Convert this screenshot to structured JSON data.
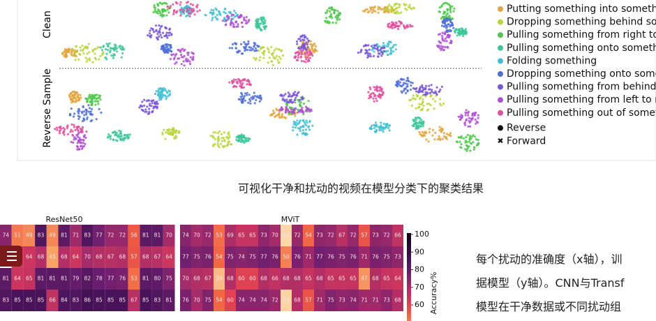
{
  "figure_top": {
    "row_labels": [
      "Clean",
      "Reverse Sample"
    ],
    "legend": [
      {
        "label": "Putting something into somethi",
        "color": "#e5a53a"
      },
      {
        "label": "Dropping something behind sor",
        "color": "#b9d63e"
      },
      {
        "label": "Pulling something from right to",
        "color": "#4cc84a"
      },
      {
        "label": "Pulling something onto somethi",
        "color": "#3cc79a"
      },
      {
        "label": "Folding something",
        "color": "#41bfd2"
      },
      {
        "label": "Dropping something onto some",
        "color": "#4f6fd8"
      },
      {
        "label": "Pulling something from behind",
        "color": "#7a55d8"
      },
      {
        "label": "Pulling something from left to ri",
        "color": "#b04fd6"
      },
      {
        "label": "Pulling something out of someth",
        "color": "#e0509e"
      }
    ],
    "marker_legend": [
      "Reverse",
      "Forward"
    ]
  },
  "caption": "可视化干净和扰动的视频在模型分类下的聚类结果",
  "heatmap": {
    "panels": [
      {
        "title": "ResNet50",
        "rows": [
          [
            74,
            51,
            49,
            83,
            49,
            81,
            71,
            83,
            77,
            72,
            72,
            56,
            81,
            81,
            70
          ],
          [
            null,
            63,
            64,
            68,
            45,
            68,
            64,
            70,
            68,
            67,
            68,
            57,
            68,
            67,
            64
          ],
          [
            81,
            64,
            65,
            81,
            81,
            81,
            79,
            82,
            78,
            77,
            76,
            53,
            81,
            80,
            75
          ],
          [
            83,
            85,
            85,
            85,
            66,
            84,
            83,
            86,
            85,
            85,
            85,
            67,
            85,
            83,
            81
          ]
        ]
      },
      {
        "title": "MViT",
        "rows": [
          [
            74,
            70,
            72,
            53,
            69,
            65,
            65,
            73,
            70,
            32,
            72,
            54,
            73,
            72,
            67,
            72,
            57,
            73,
            72,
            66
          ],
          [
            77,
            75,
            76,
            54,
            75,
            74,
            75,
            77,
            76,
            50,
            76,
            71,
            77,
            76,
            75,
            76,
            71,
            76,
            75,
            73
          ],
          [
            70,
            68,
            67,
            39,
            68,
            60,
            60,
            68,
            66,
            68,
            68,
            65,
            68,
            65,
            65,
            65,
            47,
            68,
            65,
            64
          ],
          [
            76,
            70,
            75,
            54,
            60,
            74,
            74,
            74,
            72,
            33,
            68,
            57,
            71,
            75,
            73,
            74,
            71,
            71,
            73,
            68
          ]
        ]
      }
    ],
    "colorbar": {
      "label": "Accuracy%",
      "ticks": [
        100,
        90,
        80,
        70,
        60
      ]
    }
  },
  "text": {
    "lines": [
      "每个扰动的准确度（x轴），训",
      "据模型（y轴）。CNN与Transf",
      "模型在干净数据或不同扰动组"
    ]
  }
}
